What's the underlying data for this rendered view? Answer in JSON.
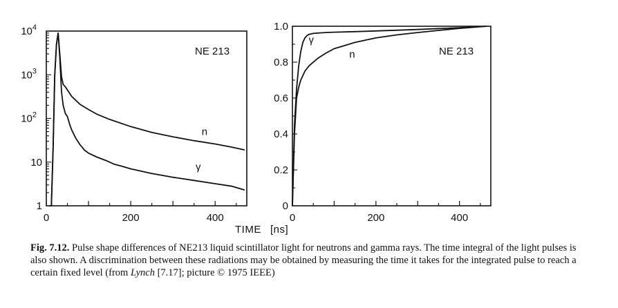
{
  "chart_data": [
    {
      "type": "line",
      "panel_label": "NE 213",
      "yscale": "log",
      "xlim": [
        0,
        475
      ],
      "ylim": [
        1,
        10000
      ],
      "x_ticks": [
        {
          "value": 0,
          "label": "0"
        },
        {
          "value": 200,
          "label": "200"
        },
        {
          "value": 400,
          "label": "400"
        }
      ],
      "y_ticks": [
        {
          "value": 1,
          "label": "1"
        },
        {
          "value": 10,
          "label": "10"
        },
        {
          "value": 100,
          "label": "10",
          "sup": "2"
        },
        {
          "value": 1000,
          "label": "10",
          "sup": "3"
        },
        {
          "value": 10000,
          "label": "10",
          "sup": "4"
        }
      ],
      "series": [
        {
          "name": "n",
          "x": [
            8,
            12,
            16,
            20,
            24,
            28,
            32,
            36,
            40,
            45,
            50,
            60,
            70,
            80,
            100,
            120,
            150,
            200,
            250,
            300,
            350,
            400,
            440,
            470
          ],
          "y": [
            1,
            1,
            20,
            1000,
            5000,
            9000,
            3000,
            900,
            600,
            530,
            450,
            320,
            260,
            210,
            160,
            125,
            95,
            65,
            48,
            38,
            31,
            26,
            22,
            19
          ]
        },
        {
          "name": "γ",
          "x": [
            8,
            12,
            16,
            20,
            24,
            28,
            32,
            36,
            40,
            45,
            50,
            55,
            60,
            70,
            80,
            90,
            100,
            120,
            140,
            160,
            180,
            200,
            250,
            300,
            350,
            400,
            440,
            470
          ],
          "y": [
            1,
            1,
            20,
            1000,
            5000,
            9000,
            2500,
            400,
            200,
            130,
            110,
            75,
            55,
            35,
            25,
            19,
            16,
            13,
            11,
            9,
            8,
            7,
            5.5,
            4.5,
            3.8,
            3.2,
            2.8,
            2.3
          ]
        }
      ],
      "curve_labels": [
        {
          "text": "n",
          "x": 375,
          "y": 42
        },
        {
          "text": "γ",
          "x": 360,
          "y": 6.5
        }
      ]
    },
    {
      "type": "line",
      "panel_label": "NE 213",
      "xlim": [
        0,
        475
      ],
      "ylim": [
        0,
        1.0
      ],
      "x_ticks": [
        {
          "value": 0,
          "label": "0"
        },
        {
          "value": 200,
          "label": "200"
        },
        {
          "value": 400,
          "label": "400"
        }
      ],
      "y_ticks": [
        {
          "value": 0,
          "label": "0"
        },
        {
          "value": 0.2,
          "label": "0.2"
        },
        {
          "value": 0.4,
          "label": "0.4"
        },
        {
          "value": 0.6,
          "label": "0.6"
        },
        {
          "value": 0.8,
          "label": "0.8"
        },
        {
          "value": 1.0,
          "label": "1.0"
        }
      ],
      "series": [
        {
          "name": "γ",
          "x": [
            0,
            5,
            10,
            15,
            20,
            25,
            30,
            35,
            40,
            50,
            60,
            80,
            100,
            150,
            200,
            300,
            400,
            465
          ],
          "y": [
            0,
            0.45,
            0.65,
            0.78,
            0.86,
            0.91,
            0.935,
            0.948,
            0.955,
            0.96,
            0.962,
            0.965,
            0.967,
            0.97,
            0.974,
            0.982,
            0.992,
            1.0
          ]
        },
        {
          "name": "n",
          "x": [
            0,
            5,
            10,
            15,
            20,
            30,
            40,
            60,
            80,
            100,
            150,
            200,
            250,
            300,
            350,
            400,
            465
          ],
          "y": [
            0,
            0.4,
            0.6,
            0.66,
            0.7,
            0.75,
            0.78,
            0.82,
            0.85,
            0.875,
            0.91,
            0.935,
            0.952,
            0.965,
            0.977,
            0.988,
            1.0
          ]
        }
      ],
      "curve_labels": [
        {
          "text": "γ",
          "x": 45,
          "y": 0.905
        },
        {
          "text": "n",
          "x": 143,
          "y": 0.825
        }
      ]
    }
  ],
  "shared_xlabel": "TIME",
  "shared_xunit": "[ns]",
  "caption": {
    "label": "Fig. 7.12.",
    "text_1": " Pulse shape differences of NE213 liquid scintillator light for neutrons and gamma rays. The time integral of the light pulses is also shown. A discrimination between these radiations may be obtained by measuring the time it takes for the integrated pulse to reach a certain fixed level (from ",
    "author": "Lynch",
    "text_2": " [7.17]; picture © 1975 IEEE)"
  }
}
